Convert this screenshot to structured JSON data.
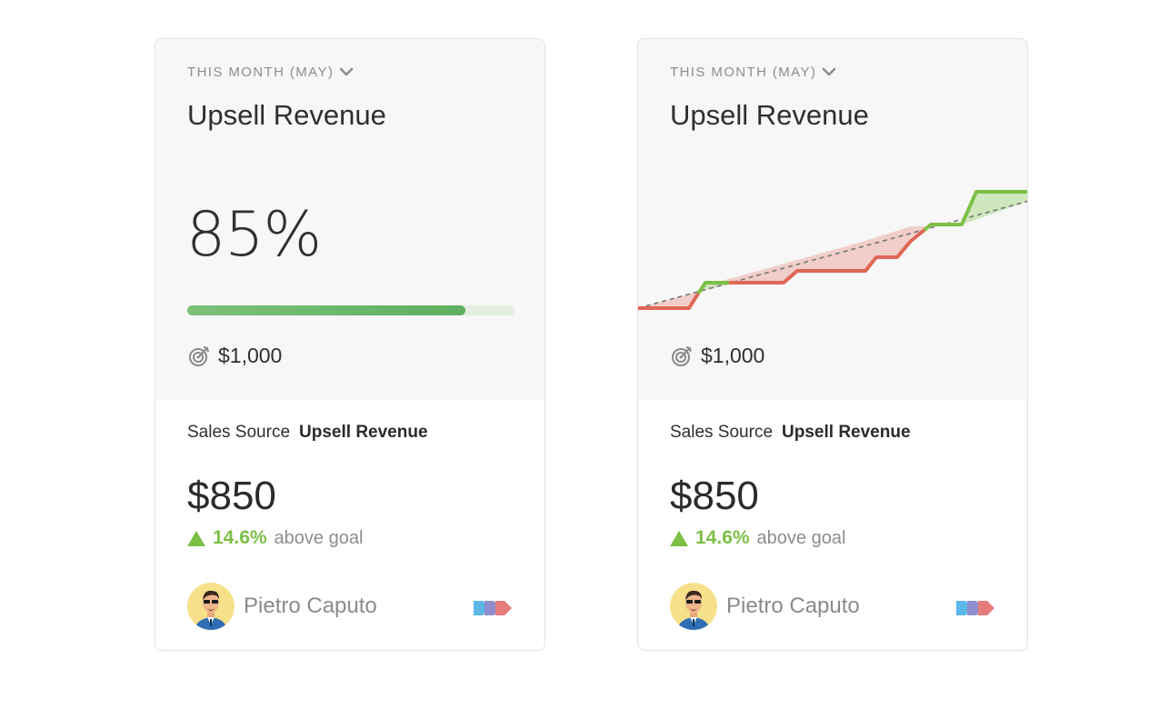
{
  "cards": [
    {
      "period": "THIS MONTH (MAY)",
      "title": "Upsell Revenue",
      "percent": "85%",
      "progress": 0.85,
      "goal": "$1,000",
      "source_label": "Sales Source",
      "source_value": "Upsell Revenue",
      "amount": "$850",
      "delta_value": "14.6%",
      "delta_label": "above goal",
      "owner": "Pietro Caputo"
    },
    {
      "period": "THIS MONTH (MAY)",
      "title": "Upsell Revenue",
      "goal": "$1,000",
      "source_label": "Sales Source",
      "source_value": "Upsell Revenue",
      "amount": "$850",
      "delta_value": "14.6%",
      "delta_label": "above goal",
      "owner": "Pietro Caputo"
    }
  ],
  "colors": {
    "progress": "#6bb86a",
    "positive": "#7cbf45",
    "negative": "#e06656",
    "card_top_bg": "#f7f7f7"
  },
  "icons": [
    "chevron-down-icon",
    "target-icon",
    "avatar",
    "tags-icon"
  ]
}
